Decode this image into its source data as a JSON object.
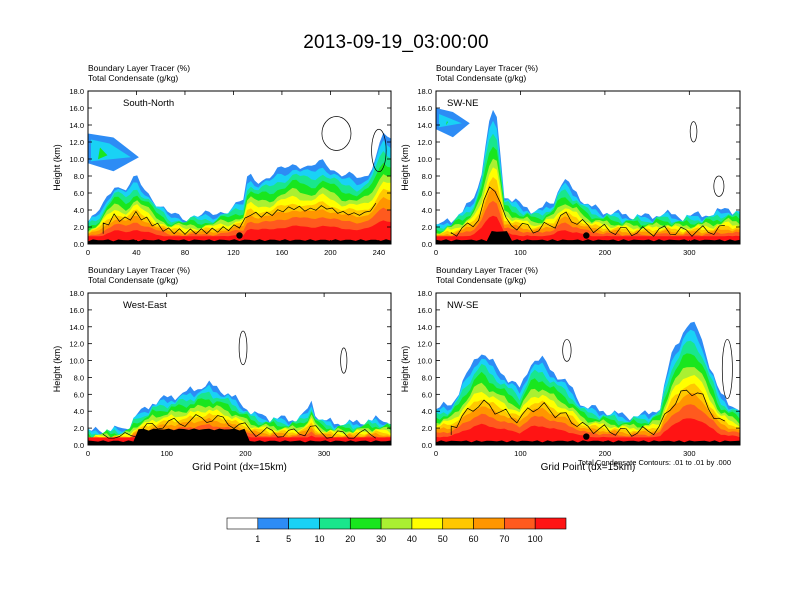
{
  "title": "2013-09-19_03:00:00",
  "colorbar": {
    "labels": [
      "1",
      "5",
      "10",
      "20",
      "30",
      "40",
      "50",
      "60",
      "70",
      "100"
    ],
    "colors": [
      "#ffffff",
      "#2d8cf5",
      "#19d2f5",
      "#19e68c",
      "#19e61e",
      "#aaf032",
      "#ffff00",
      "#ffc800",
      "#ff9600",
      "#ff5a1e",
      "#ff1414"
    ]
  },
  "footnote": "Total Condensate Contours: .01 to .01 by .000",
  "chart_data": [
    {
      "type": "heatmap",
      "id": "south-north",
      "label": "South-North",
      "line1": "Boundary Layer Tracer   (%)",
      "line2": "Total Condensate   (g/kg)",
      "ylabel": "Height (km)",
      "xlabel": "",
      "ylim": [
        0,
        18
      ],
      "yticks": [
        "0.0",
        "2.0",
        "4.0",
        "6.0",
        "8.0",
        "10.0",
        "12.0",
        "14.0",
        "16.0",
        "18.0"
      ],
      "xlim": [
        0,
        250
      ],
      "xticks": [
        "0",
        "40",
        "80",
        "120",
        "160",
        "200",
        "240"
      ],
      "xtick_values": [
        0,
        40,
        80,
        120,
        160,
        200,
        240
      ],
      "marker_x": 125,
      "profile": [
        [
          0,
          2.5
        ],
        [
          6,
          3.2
        ],
        [
          14,
          5.0
        ],
        [
          22,
          7.2
        ],
        [
          30,
          6.2
        ],
        [
          40,
          7.8
        ],
        [
          50,
          6.0
        ],
        [
          58,
          4.6
        ],
        [
          66,
          3.5
        ],
        [
          80,
          3.2
        ],
        [
          100,
          3.4
        ],
        [
          118,
          4.2
        ],
        [
          128,
          5.0
        ],
        [
          132,
          8.2
        ],
        [
          142,
          7.5
        ],
        [
          152,
          8.0
        ],
        [
          162,
          9.0
        ],
        [
          172,
          9.6
        ],
        [
          182,
          8.8
        ],
        [
          195,
          9.8
        ],
        [
          208,
          8.2
        ],
        [
          220,
          7.8
        ],
        [
          230,
          8.0
        ],
        [
          238,
          10.5
        ],
        [
          244,
          13.0
        ],
        [
          250,
          12.0
        ]
      ],
      "cloud_y": [
        9.5,
        13.0
      ],
      "cloud_x": [
        0,
        42
      ]
    },
    {
      "type": "heatmap",
      "id": "sw-ne",
      "label": "SW-NE",
      "line1": "Boundary Layer Tracer   (%)",
      "line2": "Total Condensate   (g/kg)",
      "ylabel": "Height (km)",
      "xlabel": "",
      "ylim": [
        0,
        18
      ],
      "yticks": [
        "0.0",
        "2.0",
        "4.0",
        "6.0",
        "8.0",
        "10.0",
        "12.0",
        "14.0",
        "16.0",
        "18.0"
      ],
      "xlim": [
        0,
        360
      ],
      "xticks": [
        "0",
        "100",
        "200",
        "300"
      ],
      "xtick_values": [
        0,
        100,
        200,
        300
      ],
      "marker_x": 178,
      "profile": [
        [
          0,
          2.0
        ],
        [
          20,
          3.0
        ],
        [
          38,
          4.4
        ],
        [
          48,
          6.0
        ],
        [
          55,
          9.2
        ],
        [
          60,
          12.4
        ],
        [
          66,
          16.0
        ],
        [
          74,
          14.0
        ],
        [
          80,
          5.8
        ],
        [
          96,
          4.8
        ],
        [
          120,
          3.8
        ],
        [
          140,
          5.2
        ],
        [
          150,
          7.6
        ],
        [
          165,
          6.2
        ],
        [
          180,
          4.5
        ],
        [
          200,
          3.8
        ],
        [
          225,
          3.4
        ],
        [
          250,
          3.2
        ],
        [
          270,
          3.6
        ],
        [
          290,
          3.2
        ],
        [
          310,
          3.4
        ],
        [
          330,
          3.6
        ],
        [
          345,
          4.2
        ],
        [
          360,
          3.8
        ]
      ],
      "cloud_y": [
        13.5,
        16.0
      ],
      "cloud_x": [
        0,
        40
      ]
    },
    {
      "type": "heatmap",
      "id": "west-east",
      "label": "West-East",
      "line1": "Boundary Layer Tracer   (%)",
      "line2": "Total Condensate   (g/kg)",
      "ylabel": "Height (km)",
      "xlabel": "Grid Point (dx=15km)",
      "ylim": [
        0,
        18
      ],
      "yticks": [
        "0.0",
        "2.0",
        "4.0",
        "6.0",
        "8.0",
        "10.0",
        "12.0",
        "14.0",
        "16.0",
        "18.0"
      ],
      "xlim": [
        0,
        385
      ],
      "xticks": [
        "0",
        "100",
        "200",
        "300"
      ],
      "xtick_values": [
        0,
        100,
        200,
        300
      ],
      "marker_x": 193,
      "profile": [
        [
          0,
          1.6
        ],
        [
          30,
          1.8
        ],
        [
          50,
          2.0
        ],
        [
          62,
          3.6
        ],
        [
          72,
          4.2
        ],
        [
          82,
          5.0
        ],
        [
          100,
          5.6
        ],
        [
          118,
          6.0
        ],
        [
          135,
          6.6
        ],
        [
          152,
          7.2
        ],
        [
          168,
          6.6
        ],
        [
          182,
          5.8
        ],
        [
          196,
          4.8
        ],
        [
          212,
          3.6
        ],
        [
          236,
          3.2
        ],
        [
          260,
          3.0
        ],
        [
          275,
          3.6
        ],
        [
          284,
          5.0
        ],
        [
          292,
          3.2
        ],
        [
          310,
          2.6
        ],
        [
          340,
          2.6
        ],
        [
          360,
          3.0
        ],
        [
          385,
          2.8
        ]
      ],
      "cloud_y": [
        0,
        0
      ],
      "cloud_x": [
        0,
        0
      ]
    },
    {
      "type": "heatmap",
      "id": "nw-se",
      "label": "NW-SE",
      "line1": "Boundary Layer Tracer   (%)",
      "line2": "Total Condensate   (g/kg)",
      "ylabel": "Height (km)",
      "xlabel": "Grid Point (dx=15km)",
      "ylim": [
        0,
        18
      ],
      "yticks": [
        "0.0",
        "2.0",
        "4.0",
        "6.0",
        "8.0",
        "10.0",
        "12.0",
        "14.0",
        "16.0",
        "18.0"
      ],
      "xlim": [
        0,
        360
      ],
      "xticks": [
        "0",
        "100",
        "200",
        "300"
      ],
      "xtick_values": [
        0,
        100,
        200,
        300
      ],
      "marker_x": 178,
      "profile": [
        [
          0,
          4.2
        ],
        [
          20,
          5.0
        ],
        [
          38,
          8.6
        ],
        [
          52,
          11.2
        ],
        [
          68,
          9.6
        ],
        [
          84,
          8.0
        ],
        [
          100,
          6.6
        ],
        [
          112,
          9.8
        ],
        [
          125,
          10.2
        ],
        [
          140,
          8.6
        ],
        [
          158,
          7.0
        ],
        [
          175,
          4.6
        ],
        [
          200,
          4.0
        ],
        [
          225,
          3.4
        ],
        [
          250,
          3.6
        ],
        [
          265,
          4.4
        ],
        [
          278,
          10.4
        ],
        [
          290,
          13.0
        ],
        [
          300,
          14.6
        ],
        [
          312,
          13.4
        ],
        [
          322,
          10.2
        ],
        [
          336,
          6.0
        ],
        [
          350,
          4.8
        ],
        [
          360,
          4.2
        ]
      ],
      "cloud_y": [
        0,
        0
      ],
      "cloud_x": [
        0,
        0
      ]
    }
  ]
}
